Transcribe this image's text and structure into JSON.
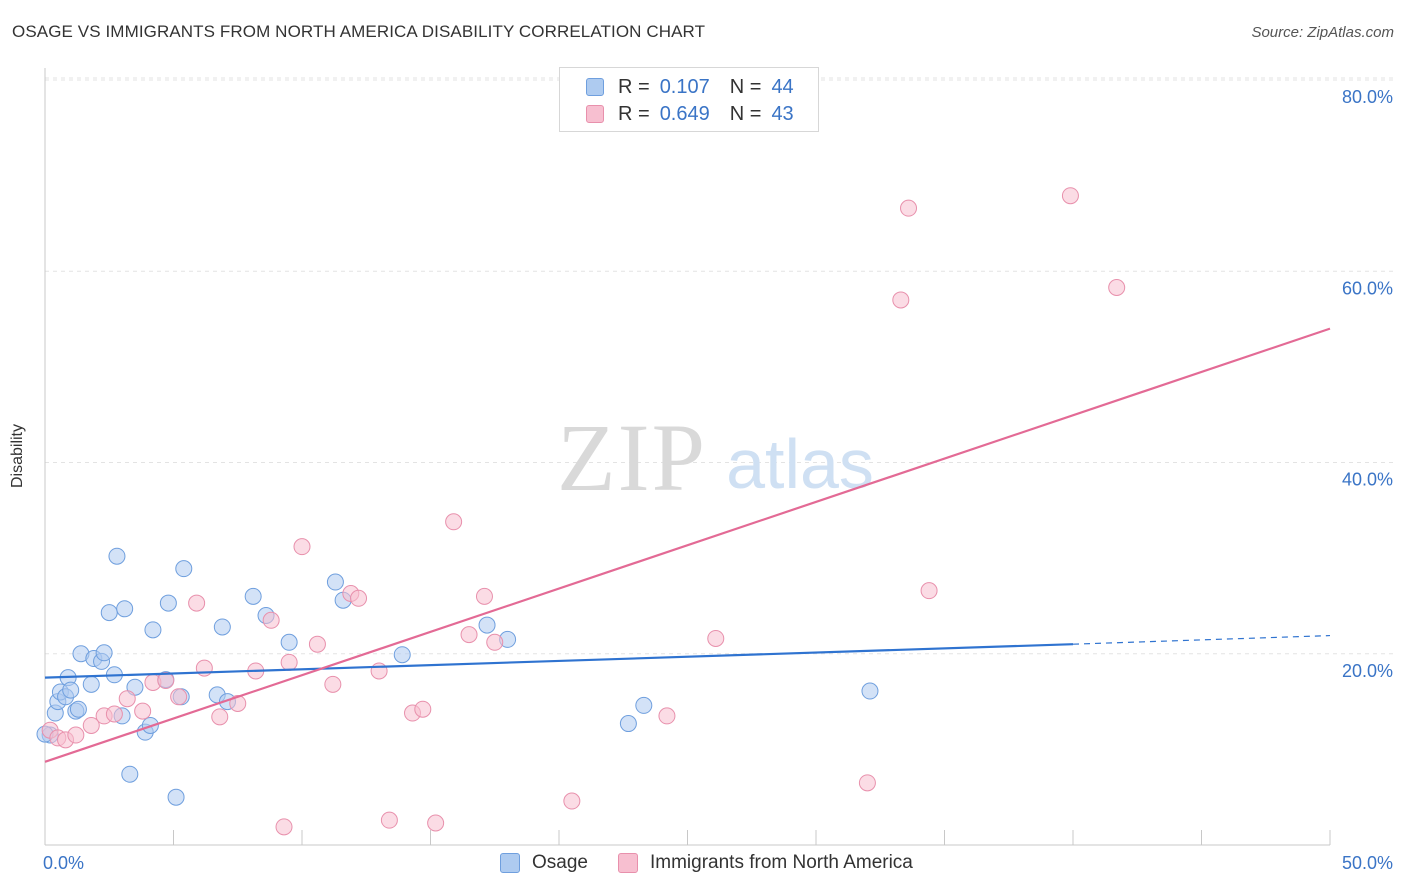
{
  "header": {
    "title": "OSAGE VS IMMIGRANTS FROM NORTH AMERICA DISABILITY CORRELATION CHART",
    "source": "Source: ZipAtlas.com"
  },
  "watermark": {
    "zip": "ZIP",
    "atlas": "atlas"
  },
  "legend_top": {
    "rows": [
      {
        "r_label": "R =",
        "r_value": "0.107",
        "n_label": "N =",
        "n_value": "44",
        "color": "#aecbf0"
      },
      {
        "r_label": "R =",
        "r_value": "0.649",
        "n_label": "N =",
        "n_value": "43",
        "color": "#f7bfd0"
      }
    ]
  },
  "legend_bottom": [
    {
      "label": "Osage",
      "color": "#aecbf0"
    },
    {
      "label": "Immigrants from North America",
      "color": "#f7bfd0"
    }
  ],
  "chart_data": {
    "type": "scatter",
    "title": "OSAGE VS IMMIGRANTS FROM NORTH AMERICA DISABILITY CORRELATION CHART",
    "xlabel": "",
    "ylabel": "Disability",
    "xlim": [
      0,
      50
    ],
    "ylim": [
      0,
      80
    ],
    "x_tick_labels": [
      "0.0%",
      "50.0%"
    ],
    "y_ticks": [
      20,
      40,
      60,
      80
    ],
    "y_tick_labels": [
      "20.0%",
      "40.0%",
      "60.0%",
      "80.0%"
    ],
    "grid": true,
    "series": [
      {
        "name": "Osage",
        "color": "#aecbf0",
        "stroke": "#6f9fde",
        "line_color": "#2f73d0",
        "trend": {
          "x": [
            0,
            40
          ],
          "y": [
            17.5,
            21.0
          ],
          "dashed_to": [
            50,
            21.9
          ]
        },
        "points": [
          [
            0.2,
            11.5
          ],
          [
            0.4,
            13.8
          ],
          [
            0.5,
            15.0
          ],
          [
            0.6,
            16.0
          ],
          [
            0.8,
            15.5
          ],
          [
            0.9,
            17.5
          ],
          [
            1.0,
            16.2
          ],
          [
            1.2,
            14.0
          ],
          [
            1.3,
            14.2
          ],
          [
            1.4,
            20.0
          ],
          [
            1.8,
            16.8
          ],
          [
            1.9,
            19.5
          ],
          [
            2.2,
            19.2
          ],
          [
            2.3,
            20.1
          ],
          [
            2.5,
            24.3
          ],
          [
            2.7,
            17.8
          ],
          [
            2.8,
            30.2
          ],
          [
            3.0,
            13.5
          ],
          [
            3.1,
            24.7
          ],
          [
            3.3,
            7.4
          ],
          [
            3.5,
            16.5
          ],
          [
            3.9,
            11.8
          ],
          [
            4.1,
            12.5
          ],
          [
            4.2,
            22.5
          ],
          [
            4.7,
            17.3
          ],
          [
            4.8,
            25.3
          ],
          [
            5.1,
            5.0
          ],
          [
            5.3,
            15.5
          ],
          [
            5.4,
            28.9
          ],
          [
            6.7,
            15.7
          ],
          [
            6.9,
            22.8
          ],
          [
            7.1,
            15.0
          ],
          [
            8.1,
            26.0
          ],
          [
            8.6,
            24.0
          ],
          [
            9.5,
            21.2
          ],
          [
            11.3,
            27.5
          ],
          [
            11.6,
            25.6
          ],
          [
            13.9,
            19.9
          ],
          [
            17.2,
            23.0
          ],
          [
            18.0,
            21.5
          ],
          [
            22.7,
            12.7
          ],
          [
            23.3,
            14.6
          ],
          [
            32.1,
            16.1
          ],
          [
            0.0,
            11.6
          ]
        ]
      },
      {
        "name": "Immigrants from North America",
        "color": "#f7bfd0",
        "stroke": "#e890ac",
        "line_color": "#e36a95",
        "trend": {
          "x": [
            0,
            50
          ],
          "y": [
            8.7,
            54.0
          ]
        },
        "points": [
          [
            0.2,
            12.0
          ],
          [
            0.5,
            11.2
          ],
          [
            0.8,
            11.0
          ],
          [
            1.2,
            11.5
          ],
          [
            1.8,
            12.5
          ],
          [
            2.3,
            13.5
          ],
          [
            2.7,
            13.7
          ],
          [
            3.2,
            15.3
          ],
          [
            3.8,
            14.0
          ],
          [
            4.2,
            17.0
          ],
          [
            4.7,
            17.2
          ],
          [
            5.2,
            15.5
          ],
          [
            5.9,
            25.3
          ],
          [
            6.2,
            18.5
          ],
          [
            6.8,
            13.4
          ],
          [
            7.5,
            14.8
          ],
          [
            8.2,
            18.2
          ],
          [
            8.8,
            23.5
          ],
          [
            9.3,
            1.9
          ],
          [
            9.5,
            19.1
          ],
          [
            10.0,
            31.2
          ],
          [
            10.6,
            21.0
          ],
          [
            11.2,
            16.8
          ],
          [
            11.9,
            26.3
          ],
          [
            12.2,
            25.8
          ],
          [
            13.0,
            18.2
          ],
          [
            13.4,
            2.6
          ],
          [
            14.3,
            13.8
          ],
          [
            14.7,
            14.2
          ],
          [
            15.2,
            2.3
          ],
          [
            15.9,
            33.8
          ],
          [
            16.5,
            22.0
          ],
          [
            17.1,
            26.0
          ],
          [
            17.5,
            21.2
          ],
          [
            20.5,
            4.6
          ],
          [
            24.2,
            13.5
          ],
          [
            26.1,
            21.6
          ],
          [
            32.0,
            6.5
          ],
          [
            33.3,
            57.0
          ],
          [
            33.6,
            66.6
          ],
          [
            34.4,
            26.6
          ],
          [
            39.9,
            67.9
          ],
          [
            41.7,
            58.3
          ]
        ]
      }
    ]
  }
}
